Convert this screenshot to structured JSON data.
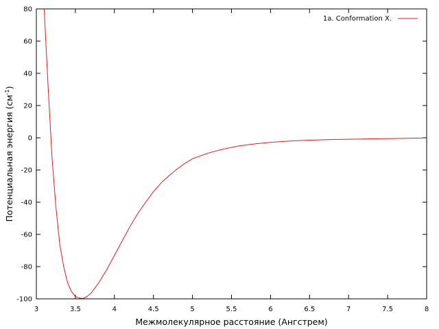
{
  "chart_data": {
    "type": "line",
    "title": "",
    "xlabel": "Межмолекулярное расстояние (Ангстрем)",
    "ylabel_main": "Потенциальная энергия (см",
    "ylabel_sup": "-1",
    "ylabel_close": ")",
    "xlim": [
      3,
      8
    ],
    "ylim": [
      -100,
      80
    ],
    "x_ticks": [
      3,
      3.5,
      4,
      4.5,
      5,
      5.5,
      6,
      6.5,
      7,
      7.5,
      8
    ],
    "x_tick_labels": [
      "3",
      "3.5",
      "4",
      "4.5",
      "5",
      "5.5",
      "6",
      "6.5",
      "7",
      "7.5",
      "8"
    ],
    "y_ticks": [
      -100,
      -80,
      -60,
      -40,
      -20,
      0,
      20,
      40,
      60,
      80
    ],
    "y_tick_labels": [
      "-100",
      "-80",
      "-60",
      "-40",
      "-20",
      "0",
      "20",
      "40",
      "60",
      "80"
    ],
    "grid": false,
    "legend_position": "top-right",
    "series": [
      {
        "name": "1a. Conformation X.",
        "color": "#e41a1c",
        "x": [
          3.1,
          3.15,
          3.2,
          3.25,
          3.3,
          3.35,
          3.4,
          3.45,
          3.5,
          3.55,
          3.6,
          3.65,
          3.7,
          3.8,
          3.9,
          4.0,
          4.1,
          4.2,
          4.3,
          4.4,
          4.5,
          4.6,
          4.7,
          4.8,
          4.9,
          5.0,
          5.2,
          5.4,
          5.6,
          5.8,
          6.0,
          6.25,
          6.5,
          6.75,
          7.0,
          7.25,
          7.5,
          7.75,
          8.0
        ],
        "y": [
          80,
          32,
          -12,
          -43,
          -66,
          -80,
          -90,
          -95.5,
          -98.5,
          -99.5,
          -99.8,
          -98.5,
          -96.5,
          -90,
          -82,
          -73,
          -64,
          -55,
          -47,
          -40,
          -33.5,
          -28,
          -23.5,
          -19.5,
          -16,
          -13,
          -9.5,
          -7,
          -5,
          -3.8,
          -2.8,
          -2,
          -1.5,
          -1.1,
          -0.9,
          -0.7,
          -0.5,
          -0.3,
          -0.1
        ]
      }
    ]
  }
}
